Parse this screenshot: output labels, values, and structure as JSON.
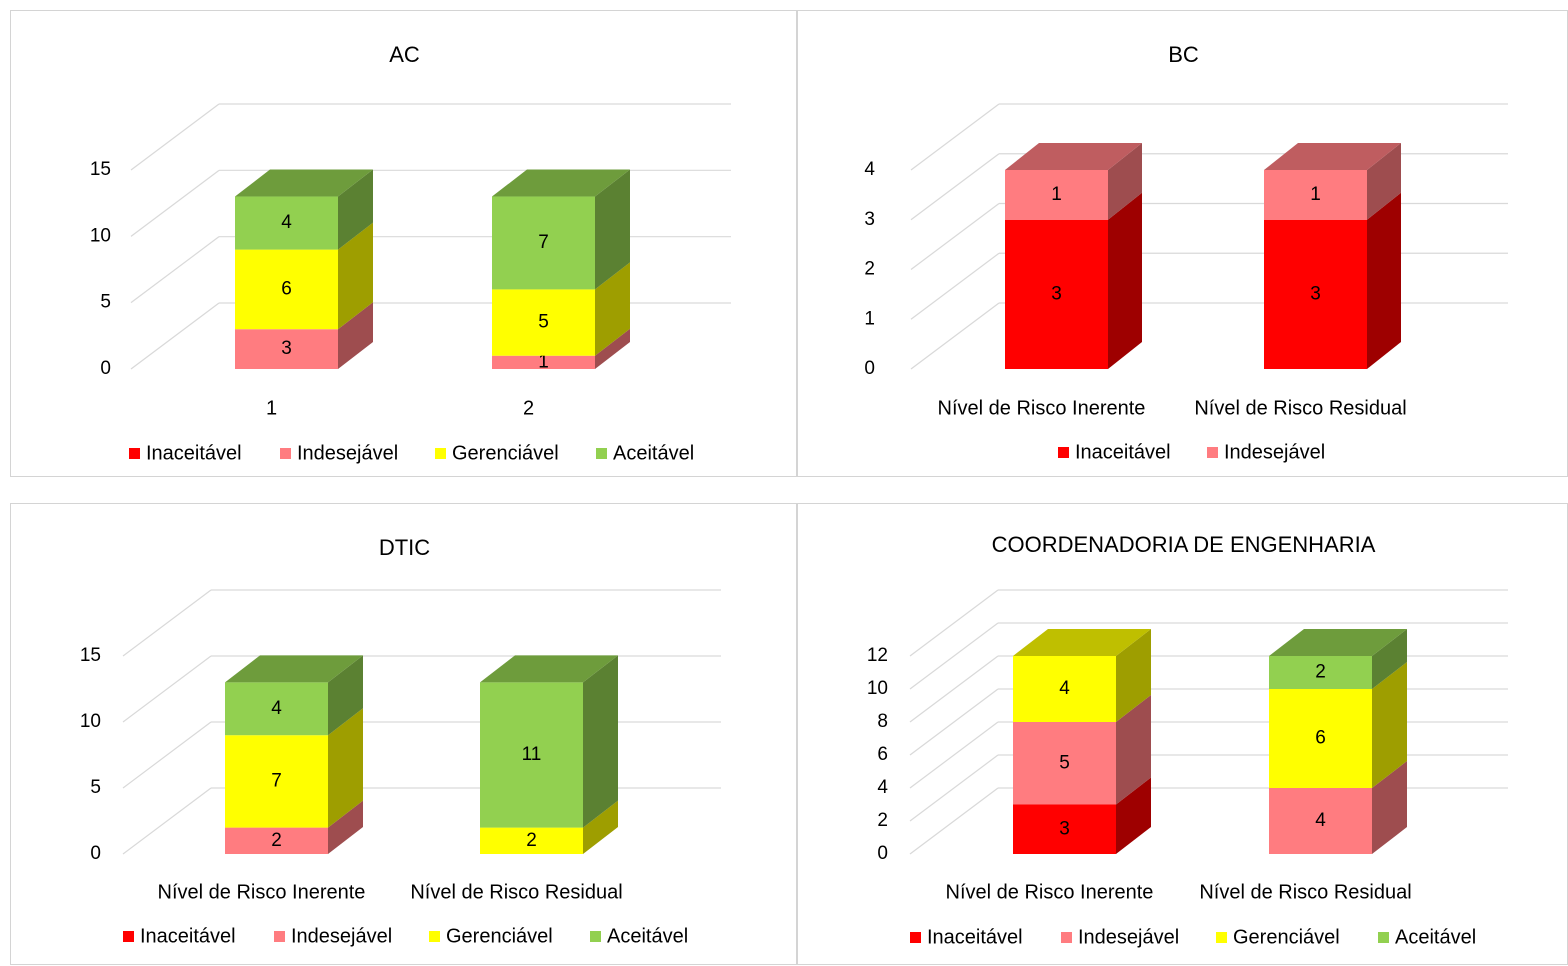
{
  "colors": {
    "inaceitavel": "#ff0000",
    "indesejavel": "#ff7c80",
    "gerenciavel": "#ffff00",
    "aceitavel": "#92d050",
    "gridline": "#d9d9d9",
    "text": "#000000",
    "border": "#d4d4d4"
  },
  "chart_data": [
    {
      "type": "bar",
      "stacked": true,
      "three_d": true,
      "title": "AC",
      "categories": [
        "1",
        "2"
      ],
      "yticks": [
        0,
        5,
        10,
        15
      ],
      "ylim": [
        0,
        15
      ],
      "series": [
        {
          "name": "Inaceitável",
          "color_key": "inaceitavel",
          "values": [
            0,
            0
          ]
        },
        {
          "name": "Indesejável",
          "color_key": "indesejavel",
          "values": [
            3,
            1
          ]
        },
        {
          "name": "Gerenciável",
          "color_key": "gerenciavel",
          "values": [
            6,
            5
          ]
        },
        {
          "name": "Aceitável",
          "color_key": "aceitavel",
          "values": [
            4,
            7
          ]
        }
      ],
      "legend": [
        "Inaceitável",
        "Indesejável",
        "Gerenciável",
        "Aceitável"
      ],
      "legend_position": "bottom",
      "grid": true
    },
    {
      "type": "bar",
      "stacked": true,
      "three_d": true,
      "title": "BC",
      "categories": [
        "Nível de Risco Inerente",
        "Nível de Risco Residual"
      ],
      "yticks": [
        0,
        1,
        2,
        3,
        4
      ],
      "ylim": [
        0,
        4
      ],
      "series": [
        {
          "name": "Inaceitável",
          "color_key": "inaceitavel",
          "values": [
            3,
            3
          ]
        },
        {
          "name": "Indesejável",
          "color_key": "indesejavel",
          "values": [
            1,
            1
          ]
        }
      ],
      "legend": [
        "Inaceitável",
        "Indesejável"
      ],
      "legend_position": "bottom",
      "grid": true
    },
    {
      "type": "bar",
      "stacked": true,
      "three_d": true,
      "title": "DTIC",
      "categories": [
        "Nível de Risco Inerente",
        "Nível de Risco Residual"
      ],
      "yticks": [
        0,
        5,
        10,
        15
      ],
      "ylim": [
        0,
        15
      ],
      "series": [
        {
          "name": "Inaceitável",
          "color_key": "inaceitavel",
          "values": [
            0,
            0
          ]
        },
        {
          "name": "Indesejável",
          "color_key": "indesejavel",
          "values": [
            2,
            0
          ]
        },
        {
          "name": "Gerenciável",
          "color_key": "gerenciavel",
          "values": [
            7,
            2
          ]
        },
        {
          "name": "Aceitável",
          "color_key": "aceitavel",
          "values": [
            4,
            11
          ]
        }
      ],
      "legend": [
        "Inaceitável",
        "Indesejável",
        "Gerenciável",
        "Aceitável"
      ],
      "legend_position": "bottom",
      "grid": true
    },
    {
      "type": "bar",
      "stacked": true,
      "three_d": true,
      "title": "COORDENADORIA DE ENGENHARIA",
      "categories": [
        "Nível de Risco Inerente",
        "Nível de Risco Residual"
      ],
      "yticks": [
        0,
        2,
        4,
        6,
        8,
        10,
        12
      ],
      "ylim": [
        0,
        12
      ],
      "series": [
        {
          "name": "Inaceitável",
          "color_key": "inaceitavel",
          "values": [
            3,
            0
          ]
        },
        {
          "name": "Indesejável",
          "color_key": "indesejavel",
          "values": [
            5,
            4
          ]
        },
        {
          "name": "Gerenciável",
          "color_key": "gerenciavel",
          "values": [
            4,
            6
          ]
        },
        {
          "name": "Aceitável",
          "color_key": "aceitavel",
          "values": [
            0,
            2
          ]
        }
      ],
      "legend": [
        "Inaceitável",
        "Indesejável",
        "Gerenciável",
        "Aceitável"
      ],
      "legend_position": "bottom",
      "grid": true
    }
  ]
}
